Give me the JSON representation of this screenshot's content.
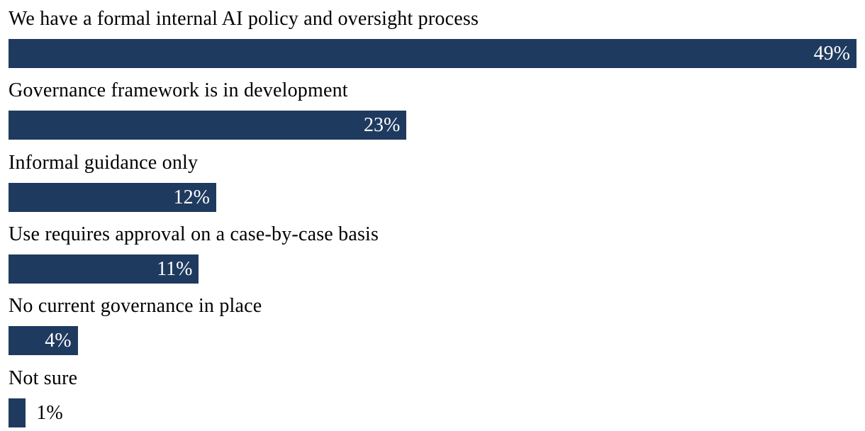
{
  "chart_data": {
    "type": "bar",
    "orientation": "horizontal",
    "title": "",
    "categories": [
      "We have a formal internal AI policy and oversight process",
      "Governance framework is in development",
      "Informal guidance only",
      "Use requires approval on a case-by-case basis",
      "No current governance in place",
      "Not sure"
    ],
    "values": [
      49,
      23,
      12,
      11,
      4,
      1
    ],
    "value_labels": [
      "49%",
      "23%",
      "12%",
      "11%",
      "4%",
      "1%"
    ],
    "xlim": [
      0,
      49
    ],
    "bar_color": "#1f3a5f",
    "category_label_color": "#000000",
    "value_label_color_inside": "#ffffff",
    "value_label_color_outside": "#000000",
    "background": "#ffffff",
    "grid": false,
    "legend": false
  }
}
